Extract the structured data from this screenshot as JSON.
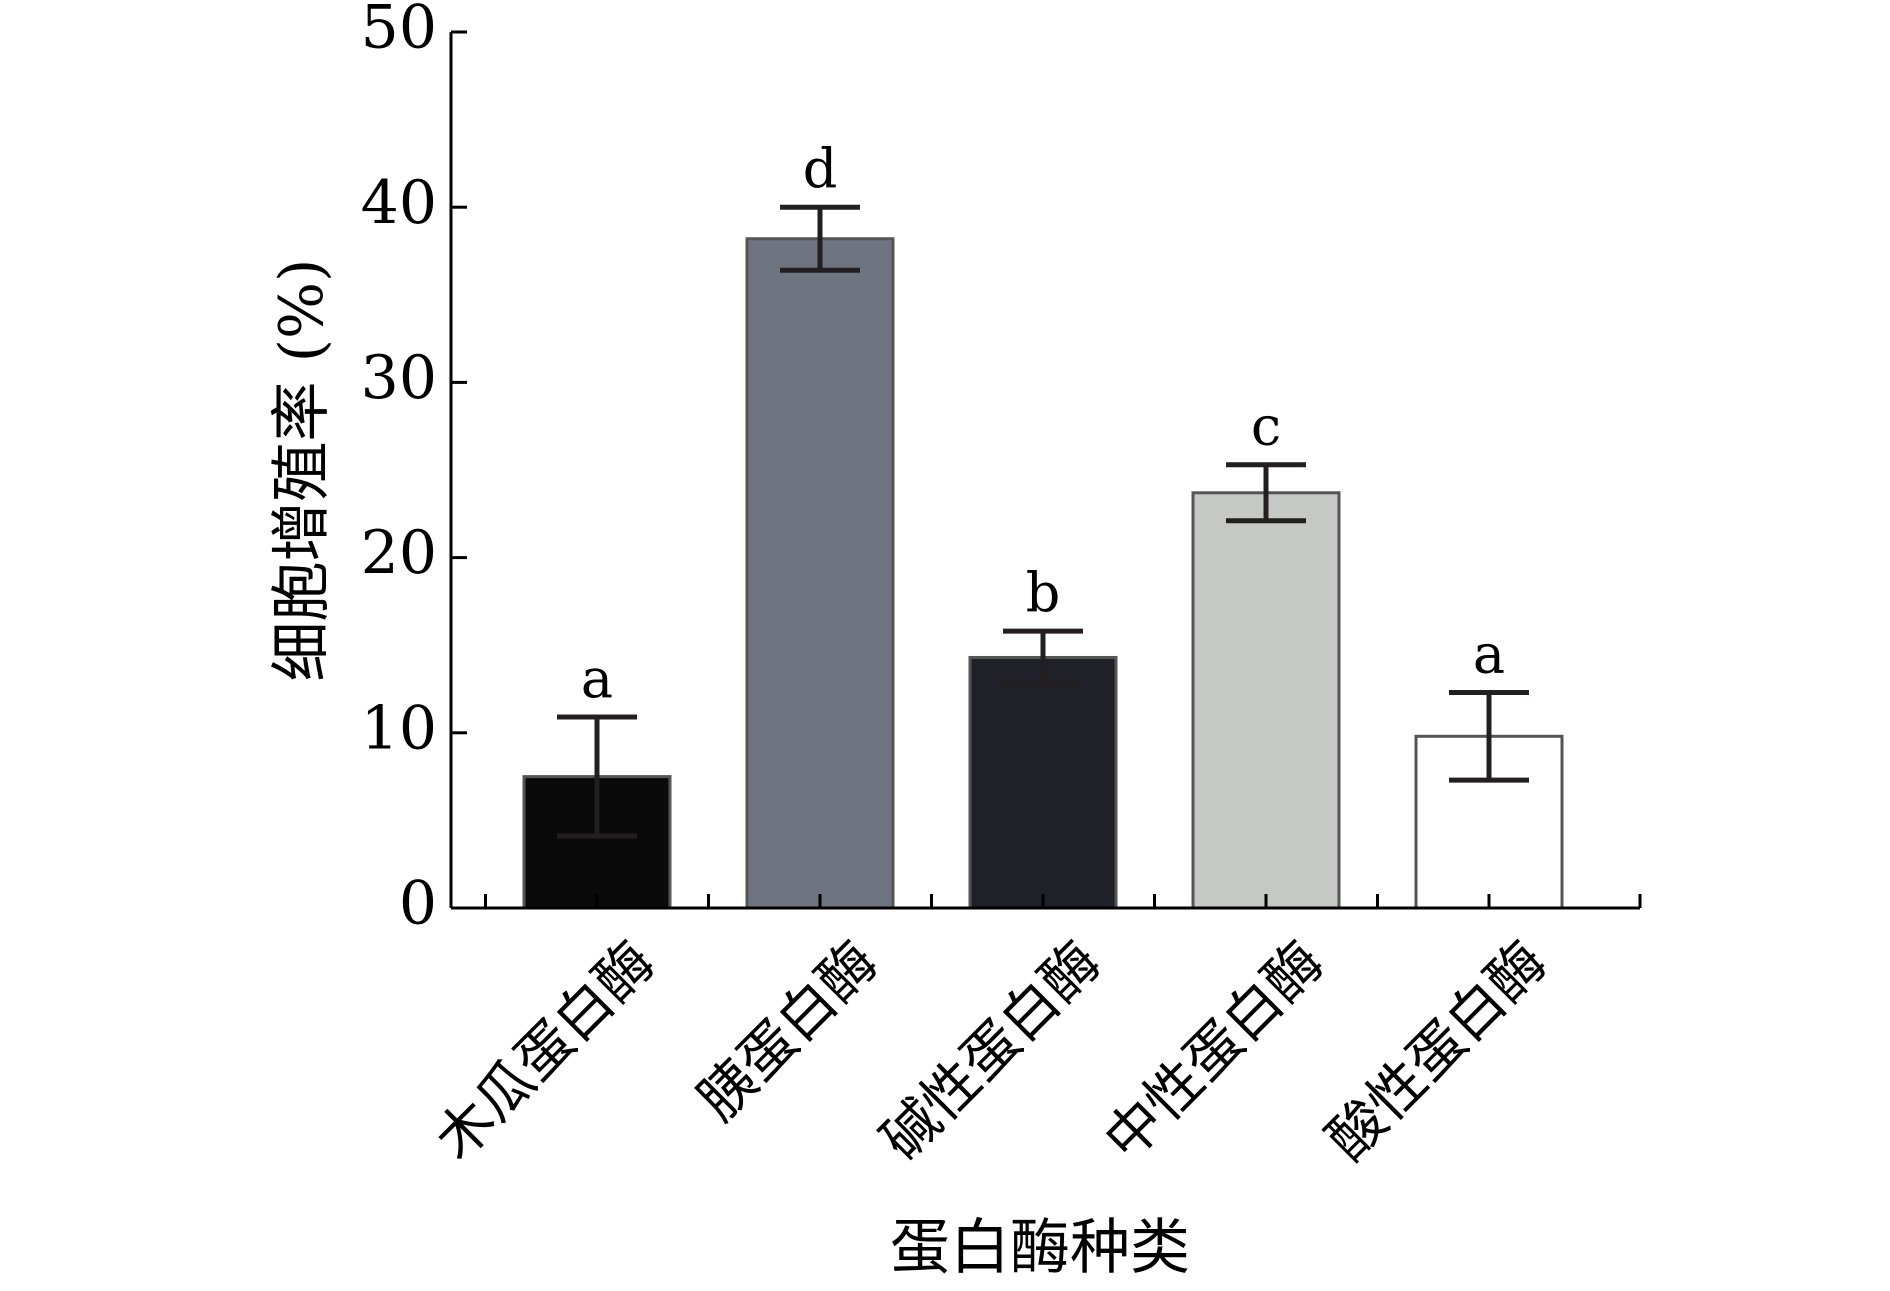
{
  "chart_data": {
    "type": "bar",
    "categories": [
      "木瓜蛋白酶",
      "胰蛋白酶",
      "碱性蛋白酶",
      "中性蛋白酶",
      "酸性蛋白酶"
    ],
    "values": [
      7.5,
      38.2,
      14.3,
      23.7,
      9.8
    ],
    "errors": [
      3.4,
      1.8,
      1.5,
      1.6,
      2.5
    ],
    "significance": [
      "a",
      "d",
      "b",
      "c",
      "a"
    ],
    "colors": [
      "#0a0a0a",
      "#6e7480",
      "#202028",
      "#c6c8c5",
      "#ffffff"
    ],
    "xlabel": "蛋白酶种类",
    "ylabel": "细胞增殖率 (%)",
    "ylim": [
      0,
      50
    ],
    "yticks": [
      0,
      10,
      20,
      30,
      40,
      50
    ],
    "grid": false,
    "legend": "none"
  }
}
